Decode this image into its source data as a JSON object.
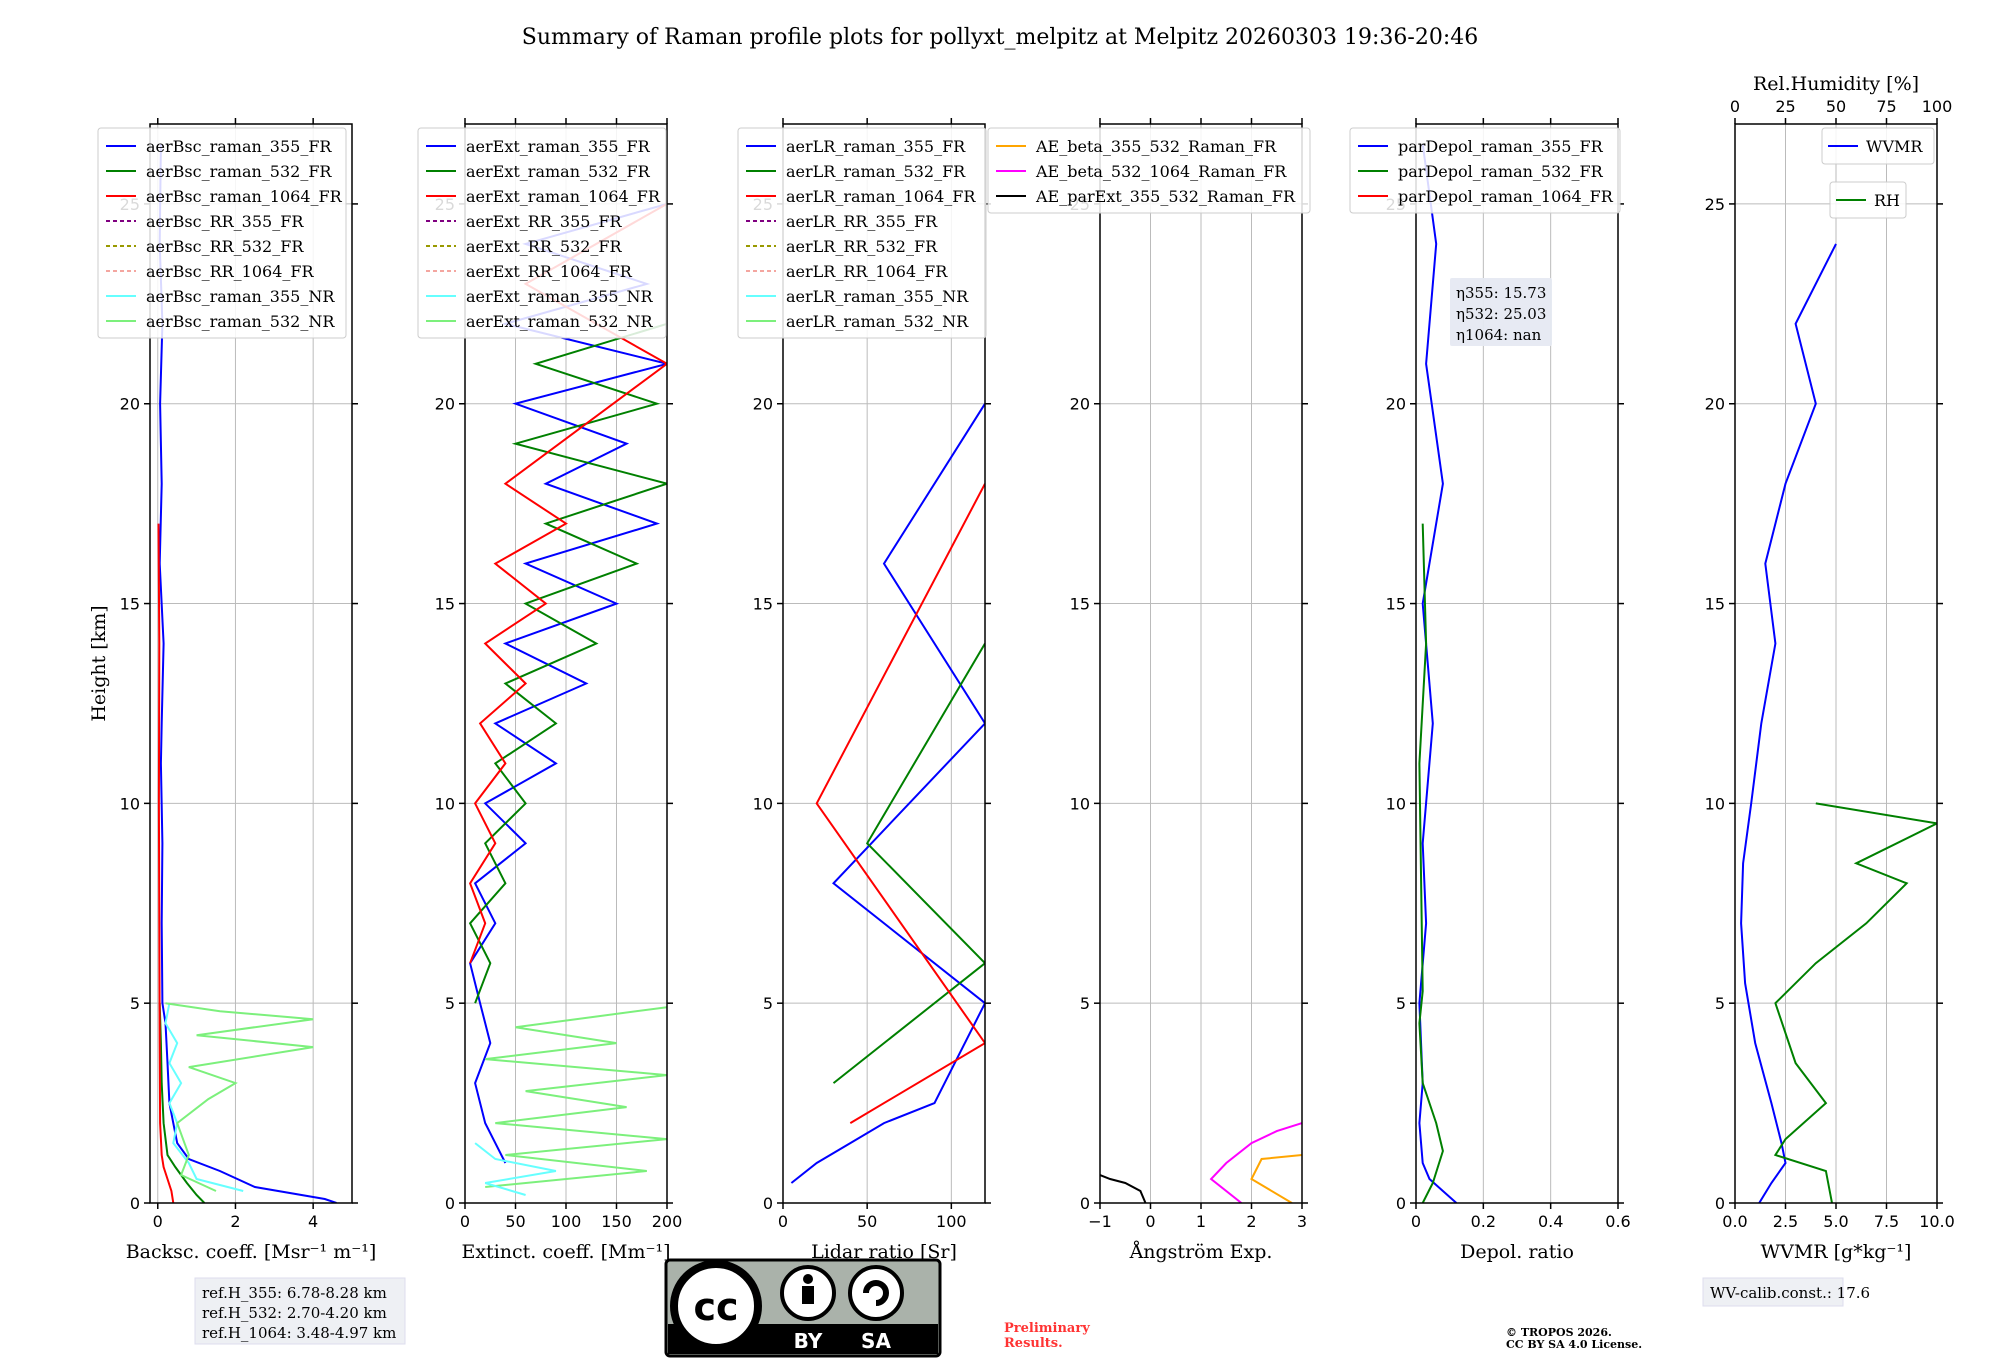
{
  "title": "Summary of Raman profile plots for pollyxt_melpitz at Melpitz 20260303 19:36-20:46",
  "colors": {
    "blue": "#0000ff",
    "green": "#008000",
    "red": "#ff0000",
    "purple": "#800080",
    "olive": "#999900",
    "salmon": "#f4a6a0",
    "cyan": "#66ffff",
    "lightgreen": "#7cf07c",
    "orange": "#ffa500",
    "magenta": "#ff00ff",
    "black": "#000000"
  },
  "notes": {
    "refh": [
      "ref.H_355: 6.78-8.28 km",
      "ref.H_532: 2.70-4.20 km",
      "ref.H_1064: 3.48-4.97 km"
    ],
    "eta": [
      "η355: 15.73",
      "η532: 25.03",
      "η1064: nan"
    ],
    "wvcalib": "WV-calib.const.: 17.6",
    "preliminary": [
      "Preliminary",
      "Results."
    ],
    "copyright": [
      "© TROPOS 2026.",
      "CC BY SA 4.0 License."
    ],
    "cc_labels": [
      "BY",
      "SA"
    ]
  },
  "chart_data": [
    {
      "type": "line",
      "id": "bsc",
      "xlabel": "Backsc. coeff. [Msr⁻¹ m⁻¹]",
      "ylabel": "Height [km]",
      "xlim": [
        -0.2,
        5
      ],
      "ylim": [
        0,
        27
      ],
      "xticks": [
        0,
        2,
        4
      ],
      "yticks": [
        0,
        5,
        10,
        15,
        20,
        25
      ],
      "legend": [
        {
          "name": "aerBsc_raman_355_FR",
          "color": "blue",
          "dash": false
        },
        {
          "name": "aerBsc_raman_532_FR",
          "color": "green",
          "dash": false
        },
        {
          "name": "aerBsc_raman_1064_FR",
          "color": "red",
          "dash": false
        },
        {
          "name": "aerBsc_RR_355_FR",
          "color": "purple",
          "dash": true
        },
        {
          "name": "aerBsc_RR_532_FR",
          "color": "olive",
          "dash": true
        },
        {
          "name": "aerBsc_RR_1064_FR",
          "color": "salmon",
          "dash": true
        },
        {
          "name": "aerBsc_raman_355_NR",
          "color": "cyan",
          "dash": false
        },
        {
          "name": "aerBsc_raman_532_NR",
          "color": "lightgreen",
          "dash": false
        }
      ],
      "series": [
        {
          "name": "aerBsc_raman_355_FR",
          "color": "blue",
          "x": [
            4.6,
            4.3,
            2.5,
            1.6,
            0.8,
            0.5,
            0.3,
            0.25,
            0.2,
            0.12,
            0.1,
            0.12,
            0.08,
            0.1,
            0.15,
            0.05,
            0.1,
            0.06,
            0.12,
            0.05,
            0.08
          ],
          "y": [
            0,
            0.1,
            0.4,
            0.8,
            1.1,
            1.5,
            2.5,
            3.5,
            4.5,
            5,
            7,
            9,
            11,
            12,
            14,
            16,
            18,
            20,
            22,
            24,
            26.5
          ]
        },
        {
          "name": "aerBsc_raman_532_FR",
          "color": "green",
          "x": [
            1.2,
            1.0,
            0.75,
            0.45,
            0.25,
            0.15,
            0.1,
            0.08,
            0.05
          ],
          "y": [
            0,
            0.2,
            0.5,
            0.9,
            1.2,
            2.0,
            3.0,
            4.0,
            5.0
          ]
        },
        {
          "name": "aerBsc_raman_1064_FR",
          "color": "red",
          "x": [
            0.4,
            0.35,
            0.25,
            0.15,
            0.1,
            0.06,
            0.05,
            0.04,
            0.03,
            0.04,
            0.02
          ],
          "y": [
            0,
            0.3,
            0.6,
            0.9,
            1.2,
            2,
            4,
            7,
            10,
            14,
            17
          ]
        },
        {
          "name": "aerBsc_raman_355_NR",
          "color": "cyan",
          "x": [
            2.2,
            1.0,
            0.8,
            0.4,
            0.5,
            0.3,
            0.6,
            0.3,
            0.5,
            0.2,
            0.3
          ],
          "y": [
            0.3,
            0.6,
            1.0,
            1.5,
            2.0,
            2.5,
            3.0,
            3.5,
            4.0,
            4.5,
            5.0
          ]
        },
        {
          "name": "aerBsc_raman_532_NR",
          "color": "lightgreen",
          "x": [
            1.5,
            0.6,
            0.8,
            0.5,
            1.3,
            2.0,
            0.8,
            4.0,
            1.0,
            4.0,
            1.6,
            0.2
          ],
          "y": [
            0.3,
            0.7,
            1.2,
            2.0,
            2.6,
            3.0,
            3.4,
            3.9,
            4.2,
            4.6,
            4.8,
            5.0
          ]
        }
      ]
    },
    {
      "type": "line",
      "id": "ext",
      "xlabel": "Extinct. coeff. [Mm⁻¹]",
      "xlim": [
        0,
        200
      ],
      "ylim": [
        0,
        27
      ],
      "xticks": [
        0,
        50,
        100,
        150,
        200
      ],
      "yticks": [
        0,
        5,
        10,
        15,
        20,
        25
      ],
      "legend": [
        {
          "name": "aerExt_raman_355_FR",
          "color": "blue",
          "dash": false
        },
        {
          "name": "aerExt_raman_532_FR",
          "color": "green",
          "dash": false
        },
        {
          "name": "aerExt_raman_1064_FR",
          "color": "red",
          "dash": false
        },
        {
          "name": "aerExt_RR_355_FR",
          "color": "purple",
          "dash": true
        },
        {
          "name": "aerExt_RR_532_FR",
          "color": "olive",
          "dash": true
        },
        {
          "name": "aerExt_RR_1064_FR",
          "color": "salmon",
          "dash": true
        },
        {
          "name": "aerExt_raman_355_NR",
          "color": "cyan",
          "dash": false
        },
        {
          "name": "aerExt_raman_532_NR",
          "color": "lightgreen",
          "dash": false
        }
      ],
      "series": [
        {
          "name": "aerExt_raman_355_FR",
          "color": "blue",
          "x": [
            40,
            20,
            10,
            25,
            15,
            5,
            30,
            10,
            60,
            20,
            90,
            30,
            120,
            40,
            150,
            60,
            190,
            80,
            160,
            50,
            200,
            40,
            180,
            60,
            200
          ],
          "y": [
            1,
            2,
            3,
            4,
            5,
            6,
            7,
            8,
            9,
            10,
            11,
            12,
            13,
            14,
            15,
            16,
            17,
            18,
            19,
            20,
            21,
            22,
            23,
            24,
            25
          ]
        },
        {
          "name": "aerExt_raman_532_FR",
          "color": "green",
          "x": [
            10,
            25,
            5,
            40,
            20,
            60,
            30,
            90,
            40,
            130,
            60,
            170,
            80,
            200,
            50,
            190,
            70,
            200
          ],
          "y": [
            5,
            6,
            7,
            8,
            9,
            10,
            11,
            12,
            13,
            14,
            15,
            16,
            17,
            18,
            19,
            20,
            21,
            22
          ]
        },
        {
          "name": "aerExt_raman_1064_FR",
          "color": "red",
          "x": [
            5,
            20,
            5,
            30,
            10,
            40,
            15,
            60,
            20,
            80,
            30,
            100,
            40,
            200,
            60,
            200
          ],
          "y": [
            6,
            7,
            8,
            9,
            10,
            11,
            12,
            13,
            14,
            15,
            16,
            17,
            18,
            21,
            23,
            25
          ]
        },
        {
          "name": "aerExt_raman_532_NR",
          "color": "lightgreen",
          "x": [
            20,
            180,
            40,
            200,
            30,
            160,
            60,
            200,
            20,
            150,
            50,
            200
          ],
          "y": [
            0.4,
            0.8,
            1.2,
            1.6,
            2.0,
            2.4,
            2.8,
            3.2,
            3.6,
            4.0,
            4.4,
            4.9
          ]
        },
        {
          "name": "aerExt_raman_355_NR",
          "color": "cyan",
          "x": [
            60,
            20,
            90,
            30,
            10
          ],
          "y": [
            0.2,
            0.5,
            0.8,
            1.1,
            1.5
          ]
        }
      ]
    },
    {
      "type": "line",
      "id": "lr",
      "xlabel": "Lidar ratio [Sr]",
      "xlim": [
        0,
        120
      ],
      "ylim": [
        0,
        27
      ],
      "xticks": [
        0,
        50,
        100
      ],
      "yticks": [
        0,
        5,
        10,
        15,
        20,
        25
      ],
      "legend": [
        {
          "name": "aerLR_raman_355_FR",
          "color": "blue",
          "dash": false
        },
        {
          "name": "aerLR_raman_532_FR",
          "color": "green",
          "dash": false
        },
        {
          "name": "aerLR_raman_1064_FR",
          "color": "red",
          "dash": false
        },
        {
          "name": "aerLR_RR_355_FR",
          "color": "purple",
          "dash": true
        },
        {
          "name": "aerLR_RR_532_FR",
          "color": "olive",
          "dash": true
        },
        {
          "name": "aerLR_RR_1064_FR",
          "color": "salmon",
          "dash": true
        },
        {
          "name": "aerLR_raman_355_NR",
          "color": "cyan",
          "dash": false
        },
        {
          "name": "aerLR_raman_532_NR",
          "color": "lightgreen",
          "dash": false
        }
      ],
      "series": [
        {
          "name": "aerLR_raman_355_FR",
          "color": "blue",
          "x": [
            5,
            20,
            40,
            60,
            90,
            120,
            30,
            120,
            60,
            120
          ],
          "y": [
            0.5,
            1.0,
            1.5,
            2.0,
            2.5,
            5,
            8,
            12,
            16,
            20
          ]
        },
        {
          "name": "aerLR_raman_532_FR",
          "color": "green",
          "x": [
            30,
            120,
            50,
            120
          ],
          "y": [
            3,
            6,
            9,
            14
          ]
        },
        {
          "name": "aerLR_raman_1064_FR",
          "color": "red",
          "x": [
            40,
            120,
            20,
            120
          ],
          "y": [
            2,
            4,
            10,
            18
          ]
        }
      ]
    },
    {
      "type": "line",
      "id": "ae",
      "xlabel": "Ångström Exp.",
      "xlim": [
        -1,
        3
      ],
      "ylim": [
        0,
        27
      ],
      "xticks": [
        -1,
        0,
        1,
        2,
        3
      ],
      "yticks": [
        0,
        5,
        10,
        15,
        20,
        25
      ],
      "legend": [
        {
          "name": "AE_beta_355_532_Raman_FR",
          "color": "orange",
          "dash": false
        },
        {
          "name": "AE_beta_532_1064_Raman_FR",
          "color": "magenta",
          "dash": false
        },
        {
          "name": "AE_parExt_355_532_Raman_FR",
          "color": "black",
          "dash": false
        }
      ],
      "series": [
        {
          "name": "AE_beta_355_532_Raman_FR",
          "color": "orange",
          "x": [
            2.8,
            2.0,
            2.2,
            3.0
          ],
          "y": [
            0,
            0.6,
            1.1,
            1.2
          ]
        },
        {
          "name": "AE_beta_532_1064_Raman_FR",
          "color": "magenta",
          "x": [
            1.8,
            1.2,
            1.5,
            2.0,
            2.5,
            3.0
          ],
          "y": [
            0,
            0.6,
            1.0,
            1.5,
            1.8,
            2.0
          ]
        },
        {
          "name": "AE_parExt_355_532_Raman_FR",
          "color": "black",
          "x": [
            -0.1,
            -0.2,
            -0.5,
            -0.8,
            -1.0
          ],
          "y": [
            0,
            0.3,
            0.5,
            0.6,
            0.7
          ]
        }
      ]
    },
    {
      "type": "line",
      "id": "dep",
      "xlabel": "Depol. ratio",
      "xlim": [
        0,
        0.6
      ],
      "ylim": [
        0,
        27
      ],
      "xticks": [
        0.0,
        0.2,
        0.4,
        0.6
      ],
      "yticks": [
        0,
        5,
        10,
        15,
        20,
        25
      ],
      "legend": [
        {
          "name": "parDepol_raman_355_FR",
          "color": "blue",
          "dash": false
        },
        {
          "name": "parDepol_raman_532_FR",
          "color": "green",
          "dash": false
        },
        {
          "name": "parDepol_raman_1064_FR",
          "color": "red",
          "dash": false
        }
      ],
      "series": [
        {
          "name": "parDepol_raman_355_FR",
          "color": "blue",
          "x": [
            0.12,
            0.08,
            0.04,
            0.02,
            0.01,
            0.02,
            0.01,
            0.03,
            0.02,
            0.05,
            0.02,
            0.08,
            0.03,
            0.06,
            0.02
          ],
          "y": [
            0,
            0.3,
            0.6,
            1.0,
            2.0,
            3.0,
            5.0,
            7.0,
            9.0,
            12.0,
            15.0,
            18.0,
            21.0,
            24.0,
            26.5
          ]
        },
        {
          "name": "parDepol_raman_532_FR",
          "color": "green",
          "x": [
            0.02,
            0.05,
            0.08,
            0.06,
            0.02,
            0.01,
            0.02,
            0.01,
            0.03,
            0.02
          ],
          "y": [
            0,
            0.5,
            1.3,
            2.0,
            3.0,
            4.5,
            5.3,
            11.0,
            14.0,
            17.0
          ]
        }
      ]
    },
    {
      "type": "line",
      "id": "wv",
      "xlabel": "WVMR [g*kg⁻¹]",
      "top_xlabel": "Rel.Humidity [%]",
      "xlim": [
        0,
        10
      ],
      "ylim": [
        0,
        27
      ],
      "xticks": [
        "0.0",
        "2.5",
        "5.0",
        "7.5",
        "10.0"
      ],
      "top_xticks": [
        0,
        25,
        50,
        75,
        100
      ],
      "yticks": [
        0,
        5,
        10,
        15,
        20,
        25
      ],
      "legend": [
        {
          "name": "WVMR",
          "color": "blue",
          "dash": false
        },
        {
          "name": "RH",
          "color": "green",
          "dash": false
        }
      ],
      "series": [
        {
          "name": "WVMR",
          "color": "blue",
          "x": [
            1.2,
            1.8,
            2.5,
            2.3,
            1.8,
            1.0,
            0.5,
            0.3,
            0.4,
            0.8,
            1.3,
            2.0,
            1.5,
            2.5,
            4.0,
            3.0,
            5.0
          ],
          "y": [
            0,
            0.5,
            1.0,
            1.5,
            2.5,
            4.0,
            5.5,
            7.0,
            8.5,
            10.0,
            12.0,
            14.0,
            16.0,
            18.0,
            20.0,
            22.0,
            24.0
          ]
        },
        {
          "name": "RH",
          "color": "green",
          "x": [
            4.8,
            4.5,
            2.0,
            2.5,
            4.5,
            3.0,
            2.0,
            4.0,
            6.5,
            8.5,
            6.0,
            10.0,
            4.0
          ],
          "y": [
            0,
            0.8,
            1.2,
            1.6,
            2.5,
            3.5,
            5.0,
            6.0,
            7.0,
            8.0,
            8.5,
            9.5,
            10.0
          ]
        }
      ]
    }
  ]
}
